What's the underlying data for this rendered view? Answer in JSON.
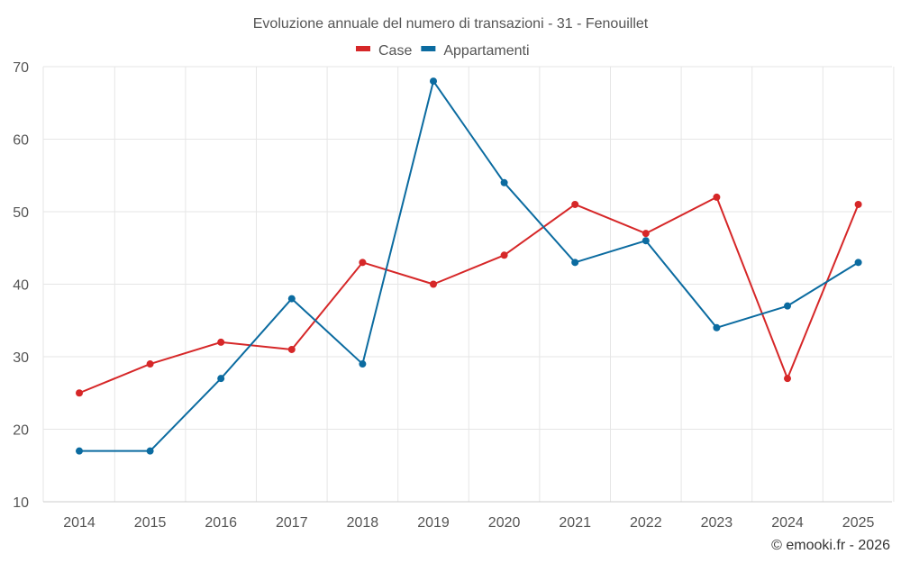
{
  "chart_data": {
    "type": "line",
    "title": "Evoluzione annuale del numero di transazioni - 31 - Fenouillet",
    "categories": [
      "2014",
      "2015",
      "2016",
      "2017",
      "2018",
      "2019",
      "2020",
      "2021",
      "2022",
      "2023",
      "2024",
      "2025"
    ],
    "series": [
      {
        "name": "Case",
        "color": "#d62728",
        "values": [
          25,
          29,
          32,
          31,
          43,
          40,
          44,
          51,
          47,
          52,
          27,
          51
        ]
      },
      {
        "name": "Appartamenti",
        "color": "#0b6ba0",
        "values": [
          17,
          17,
          27,
          38,
          29,
          68,
          54,
          43,
          46,
          34,
          37,
          43
        ]
      }
    ],
    "yticks": [
      10,
      20,
      30,
      40,
      50,
      60,
      70
    ],
    "ylim": [
      10,
      70
    ],
    "xlabel": "",
    "ylabel": "",
    "grid": true,
    "legend_position": "top-center"
  },
  "credit": "© emooki.fr - 2026"
}
